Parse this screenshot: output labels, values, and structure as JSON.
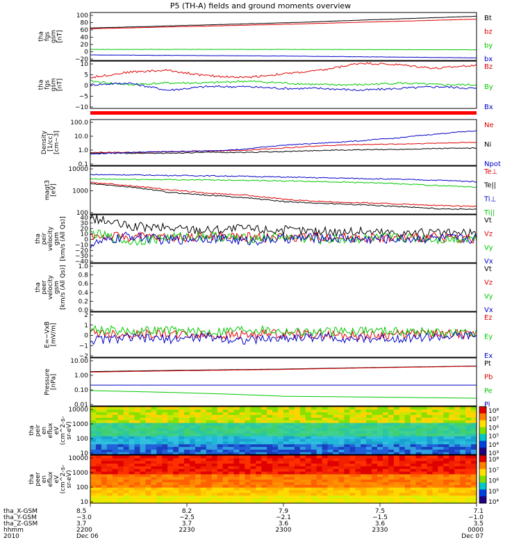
{
  "title": "P5 (TH-A) fields and ground moments overview",
  "chart_data": [
    {
      "type": "line",
      "panel": "fgs_gsm",
      "ylabel": [
        "tha",
        "fgs",
        "gsm",
        "[nT]"
      ],
      "ylim": [
        -30,
        100
      ],
      "yticks": [
        "100",
        "80",
        "60",
        "40",
        "20",
        "0",
        "−20"
      ],
      "x": [
        0,
        0.5,
        1
      ],
      "series": [
        {
          "name": "Bt",
          "color": "#000000",
          "values": [
            58,
            72,
            90
          ]
        },
        {
          "name": "bz",
          "color": "#e00000",
          "values": [
            56,
            68,
            82
          ]
        },
        {
          "name": "by",
          "color": "#00c800",
          "values": [
            0,
            0,
            -1
          ]
        },
        {
          "name": "bx",
          "color": "#0000c8",
          "values": [
            -15,
            -18,
            -23
          ]
        }
      ]
    },
    {
      "type": "line",
      "panel": "fgs_gsm_zoom",
      "ylabel": [
        "tha",
        "fgs",
        "gsm",
        "[nT]"
      ],
      "ylim": [
        -15,
        11
      ],
      "yticks": [
        "10",
        "5",
        "0",
        "−5",
        "−10"
      ],
      "x": [
        0,
        0.1,
        0.2,
        0.3,
        0.4,
        0.5,
        0.6,
        0.7,
        0.8,
        0.9,
        1
      ],
      "series": [
        {
          "name": "Bz",
          "color": "#e00000",
          "values": [
            2,
            5,
            6,
            3,
            2,
            4,
            6,
            10,
            9,
            7,
            9
          ]
        },
        {
          "name": "By",
          "color": "#00c800",
          "values": [
            0,
            -2,
            -1,
            -1,
            0,
            -1,
            -2,
            -2,
            -1,
            -2,
            -2
          ]
        },
        {
          "name": "Bx",
          "color": "#0000c8",
          "values": [
            -2,
            -1,
            -5,
            -3,
            -3,
            -4,
            -4,
            -5,
            -4,
            -3,
            -4
          ]
        }
      ]
    },
    {
      "type": "line",
      "panel": "density",
      "ylabel": [
        "Density",
        "[1/cc]",
        "[cm−3]"
      ],
      "yscale": "log",
      "ylim": [
        0.1,
        150
      ],
      "yticks": [
        "100.0",
        "10.0",
        "1.0",
        "0.1"
      ],
      "x": [
        0,
        0.1,
        0.2,
        0.3,
        0.4,
        0.5,
        0.6,
        0.7,
        0.8,
        0.9,
        1
      ],
      "series": [
        {
          "name": "Ne",
          "color": "#e00000",
          "values": [
            0.8,
            0.8,
            0.9,
            1.0,
            1.1,
            1.6,
            2.3,
            2.8,
            3.0,
            3.5,
            4.0
          ]
        },
        {
          "name": "Ni",
          "color": "#000000",
          "values": [
            0.7,
            0.7,
            0.7,
            0.8,
            0.8,
            0.9,
            1.1,
            1.2,
            1.3,
            1.5,
            1.6
          ]
        },
        {
          "name": "Npot",
          "color": "#0000c8",
          "values": [
            0.6,
            0.8,
            0.9,
            1.0,
            1.3,
            2.5,
            3.5,
            5.0,
            8.0,
            15.0,
            25.0
          ]
        }
      ]
    },
    {
      "type": "line",
      "panel": "temperature",
      "ylabel": [
        "magt3",
        "[eV]"
      ],
      "yscale": "log",
      "ylim": [
        30,
        15000
      ],
      "yticks": [
        "10000",
        "1000",
        "100"
      ],
      "x": [
        0,
        0.1,
        0.2,
        0.3,
        0.4,
        0.5,
        0.6,
        0.7,
        0.8,
        0.9,
        1
      ],
      "series": [
        {
          "name": "Te⊥",
          "color": "#e00000",
          "values": [
            1800,
            1200,
            700,
            450,
            350,
            200,
            150,
            130,
            110,
            90,
            80
          ]
        },
        {
          "name": "Te||",
          "color": "#000000",
          "values": [
            1500,
            1000,
            500,
            350,
            250,
            150,
            120,
            100,
            80,
            60,
            55
          ]
        },
        {
          "name": "Ti⊥",
          "color": "#0000c8",
          "values": [
            5000,
            4800,
            4500,
            4300,
            4000,
            3600,
            3300,
            3000,
            2700,
            2400,
            2000
          ]
        },
        {
          "name": "Ti||",
          "color": "#00c800",
          "values": [
            2800,
            2700,
            2600,
            2500,
            2400,
            2200,
            2000,
            1800,
            1500,
            1200,
            1000
          ]
        }
      ]
    },
    {
      "type": "line",
      "panel": "peir_velocity",
      "ylabel": [
        "tha",
        "peir",
        "velocity",
        "gsm",
        "[km/s (All Qs)]"
      ],
      "ylim": [
        -40,
        40
      ],
      "yticks": [
        "40",
        "30",
        "20",
        "10",
        "0",
        "−10",
        "−20",
        "−30",
        "−40"
      ],
      "x": [
        0,
        0.1,
        0.2,
        0.3,
        0.4,
        0.5,
        0.6,
        0.7,
        0.8,
        0.9,
        1
      ],
      "series": [
        {
          "name": "Vt",
          "color": "#000000",
          "values": [
            35,
            20,
            18,
            15,
            17,
            14,
            12,
            12,
            10,
            9,
            8
          ]
        },
        {
          "name": "Vz",
          "color": "#e00000",
          "values": [
            5,
            3,
            2,
            4,
            3,
            2,
            3,
            2,
            1,
            2,
            1
          ]
        },
        {
          "name": "Vy",
          "color": "#00c800",
          "values": [
            10,
            -5,
            2,
            5,
            0,
            3,
            -2,
            0,
            2,
            -1,
            1
          ]
        },
        {
          "name": "Vx",
          "color": "#0000c8",
          "values": [
            -10,
            5,
            -3,
            2,
            -4,
            0,
            2,
            -1,
            0,
            1,
            0
          ]
        }
      ]
    },
    {
      "type": "line",
      "panel": "peer_velocity",
      "ylabel": [
        "tha",
        "peer",
        "velocity",
        "gsm",
        "[km/s (All Qs)]"
      ],
      "ylim": [
        0,
        1
      ],
      "yticks": [
        "1.0",
        "0.8",
        "0.6",
        "0.4",
        "0.2",
        "0.0"
      ],
      "series": [
        {
          "name": "Vt",
          "color": "#000000",
          "values": []
        },
        {
          "name": "Vz",
          "color": "#e00000",
          "values": []
        },
        {
          "name": "Vy",
          "color": "#00c800",
          "values": []
        },
        {
          "name": "Vx",
          "color": "#0000c8",
          "values": []
        }
      ]
    },
    {
      "type": "line",
      "panel": "efield",
      "ylabel": [
        "E=−VxB",
        "[mV/m]"
      ],
      "ylim": [
        -2,
        2
      ],
      "yticks": [
        "2",
        "1",
        "0",
        "−1",
        "−2"
      ],
      "x": [
        0,
        0.1,
        0.2,
        0.3,
        0.4,
        0.5,
        0.6,
        0.7,
        0.8,
        0.9,
        1
      ],
      "series": [
        {
          "name": "Ez",
          "color": "#e00000",
          "values": [
            0.2,
            0.0,
            0.1,
            -0.1,
            0.0,
            0.1,
            0.0,
            -0.1,
            0.0,
            0.1,
            0.0
          ]
        },
        {
          "name": "Ey",
          "color": "#00c800",
          "values": [
            0.5,
            0.3,
            0.4,
            0.2,
            0.5,
            0.3,
            0.2,
            0.4,
            0.3,
            0.2,
            0.1
          ]
        },
        {
          "name": "Ex",
          "color": "#0000c8",
          "values": [
            -0.5,
            -0.3,
            -0.4,
            -0.2,
            -0.5,
            -0.3,
            -0.2,
            -0.4,
            -0.3,
            -0.2,
            -0.1
          ]
        }
      ]
    },
    {
      "type": "line",
      "panel": "pressure",
      "ylabel": [
        "Pressure",
        "[nPa]"
      ],
      "yscale": "log",
      "ylim": [
        0.01,
        10
      ],
      "yticks": [
        "10.00",
        "1.00",
        "0.10",
        "0.01"
      ],
      "x": [
        0,
        0.5,
        1
      ],
      "series": [
        {
          "name": "Pt",
          "color": "#000000",
          "values": [
            1.4,
            2.0,
            3.1
          ]
        },
        {
          "name": "Pb",
          "color": "#e00000",
          "values": [
            1.3,
            1.9,
            3.0
          ]
        },
        {
          "name": "Pe",
          "color": "#00c800",
          "values": [
            0.09,
            0.04,
            0.03
          ]
        },
        {
          "name": "Pi",
          "color": "#0000c8",
          "values": [
            0.2,
            0.2,
            0.2
          ]
        }
      ]
    },
    {
      "type": "heatmap",
      "panel": "peir_spectrogram",
      "ylabel": [
        "tha",
        "peir",
        "en",
        "eflux",
        "eV",
        "(cm^2-s-",
        "sr-eV)"
      ],
      "yscale": "log",
      "ylim": [
        7,
        20000
      ],
      "yticks": [
        "10000",
        "1000",
        "100",
        "10"
      ],
      "colorbar_labels": [
        "10⁸",
        "10⁷",
        "10⁶",
        "10⁵",
        "10⁴",
        "10³"
      ]
    },
    {
      "type": "heatmap",
      "panel": "peer_spectrogram",
      "ylabel": [
        "tha",
        "peer",
        "en",
        "eflux",
        "eV",
        "(cm^2-s-",
        "sr-eV)"
      ],
      "yscale": "log",
      "ylim": [
        7,
        20000
      ],
      "yticks": [
        "10000",
        "1000",
        "100",
        "10"
      ],
      "colorbar_labels": [
        "10⁸",
        "10⁷",
        "10⁶",
        "10⁵",
        "10⁴"
      ]
    }
  ],
  "xaxis": {
    "row_labels": [
      "tha_X-GSM",
      "tha_Y-GSM",
      "tha_Z-GSM",
      "hhmm",
      "2010"
    ],
    "ticks": [
      {
        "x": 0.0,
        "lines": [
          "8.5",
          "−3.0",
          "3.7",
          "2200",
          "Dec 06"
        ]
      },
      {
        "x": 0.25,
        "lines": [
          "8.2",
          "−2.5",
          "3.7",
          "2230",
          ""
        ]
      },
      {
        "x": 0.5,
        "lines": [
          "7.9",
          "−2.1",
          "3.6",
          "2300",
          ""
        ]
      },
      {
        "x": 0.75,
        "lines": [
          "7.5",
          "−1.5",
          "3.6",
          "2330",
          ""
        ]
      },
      {
        "x": 1.0,
        "lines": [
          "7.1",
          "−1.0",
          "3.5",
          "0000",
          "Dec 07"
        ]
      }
    ]
  }
}
